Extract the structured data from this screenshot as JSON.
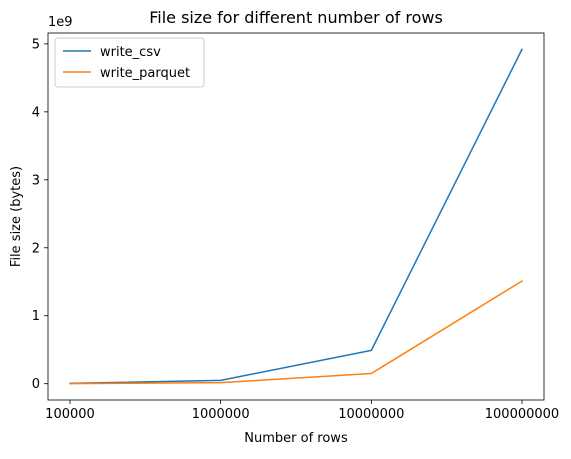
{
  "chart_data": {
    "type": "line",
    "title": "File size for different number of rows",
    "xlabel": "Number of rows",
    "ylabel": "File size (bytes)",
    "y_offset_label": "1e9",
    "categories": [
      "100000",
      "1000000",
      "10000000",
      "100000000"
    ],
    "series": [
      {
        "name": "write_csv",
        "color": "#1f77b4",
        "values": [
          0.0049,
          0.049,
          0.49,
          4.92
        ]
      },
      {
        "name": "write_parquet",
        "color": "#ff7f0e",
        "values": [
          0.0015,
          0.015,
          0.15,
          1.51
        ]
      }
    ],
    "yticks": [
      "0",
      "1",
      "2",
      "3",
      "4",
      "5"
    ],
    "ylim": [
      -0.24,
      5.16
    ],
    "grid": false,
    "legend_position": "upper left"
  }
}
